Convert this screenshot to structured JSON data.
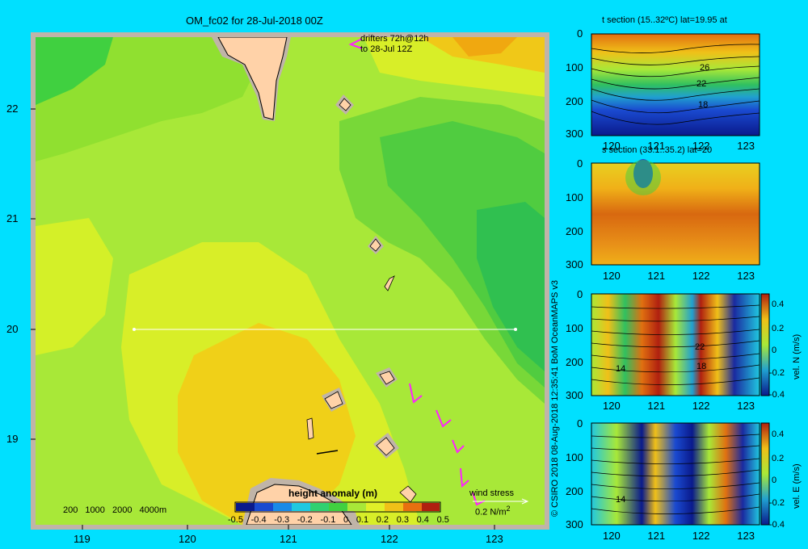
{
  "main": {
    "title": "OM_fc02 for 28-Jul-2018 00Z",
    "drifters_line1": "drifters 72h@12h",
    "drifters_line2": "to 28-Jul 12Z",
    "lat_ticks": [
      "22",
      "21",
      "20",
      "19"
    ],
    "lon_ticks": [
      "119",
      "120",
      "121",
      "122",
      "123"
    ],
    "depth_legend": [
      "200",
      "1000",
      "2000",
      "4000m"
    ],
    "colorbar_title": "height anomaly (m)",
    "colorbar_ticks": [
      "-0.5",
      "-0.4",
      "-0.3",
      "-0.2",
      "-0.1",
      "0",
      "0.1",
      "0.2",
      "0.3",
      "0.4",
      "0.5"
    ],
    "wind_label": "wind stress",
    "wind_scale": "0.2 N/m",
    "wind_exp": "2",
    "lat_range": [
      18.3,
      22.7
    ],
    "lon_range": [
      118.5,
      123.5
    ],
    "section_lat": 20.0,
    "section_lon": [
      119.5,
      123.2
    ]
  },
  "credit": "© CSIRO 2018   08-Aug-2018 12:35:41 BoM OceanMAPS v3",
  "panels": [
    {
      "title": "t section (15..32ºC) lat=19.95 at",
      "y_ticks": [
        "0",
        "100",
        "200",
        "300"
      ],
      "x_ticks": [
        "120",
        "121",
        "122",
        "123"
      ],
      "contour_labels": [
        "26",
        "22",
        "18"
      ]
    },
    {
      "title": "s section (33.1..35.2) lat=20",
      "y_ticks": [
        "0",
        "100",
        "200",
        "300"
      ],
      "x_ticks": [
        "120",
        "121",
        "122",
        "123"
      ]
    },
    {
      "y_ticks": [
        "0",
        "100",
        "200",
        "300"
      ],
      "x_ticks": [
        "120",
        "121",
        "122",
        "123"
      ],
      "contour_labels": [
        "14",
        "22",
        "18"
      ],
      "cbar_label": "vel. N (m/s)",
      "cbar_ticks": [
        "0.4",
        "0.2",
        "0",
        "-0.2",
        "-0.4"
      ]
    },
    {
      "y_ticks": [
        "0",
        "100",
        "200",
        "300"
      ],
      "x_ticks": [
        "120",
        "121",
        "122",
        "123"
      ],
      "contour_labels": [
        "14"
      ],
      "cbar_label": "vel. E (m/s)",
      "cbar_ticks": [
        "0.4",
        "0.2",
        "0",
        "-0.2",
        "-0.4"
      ]
    }
  ]
}
